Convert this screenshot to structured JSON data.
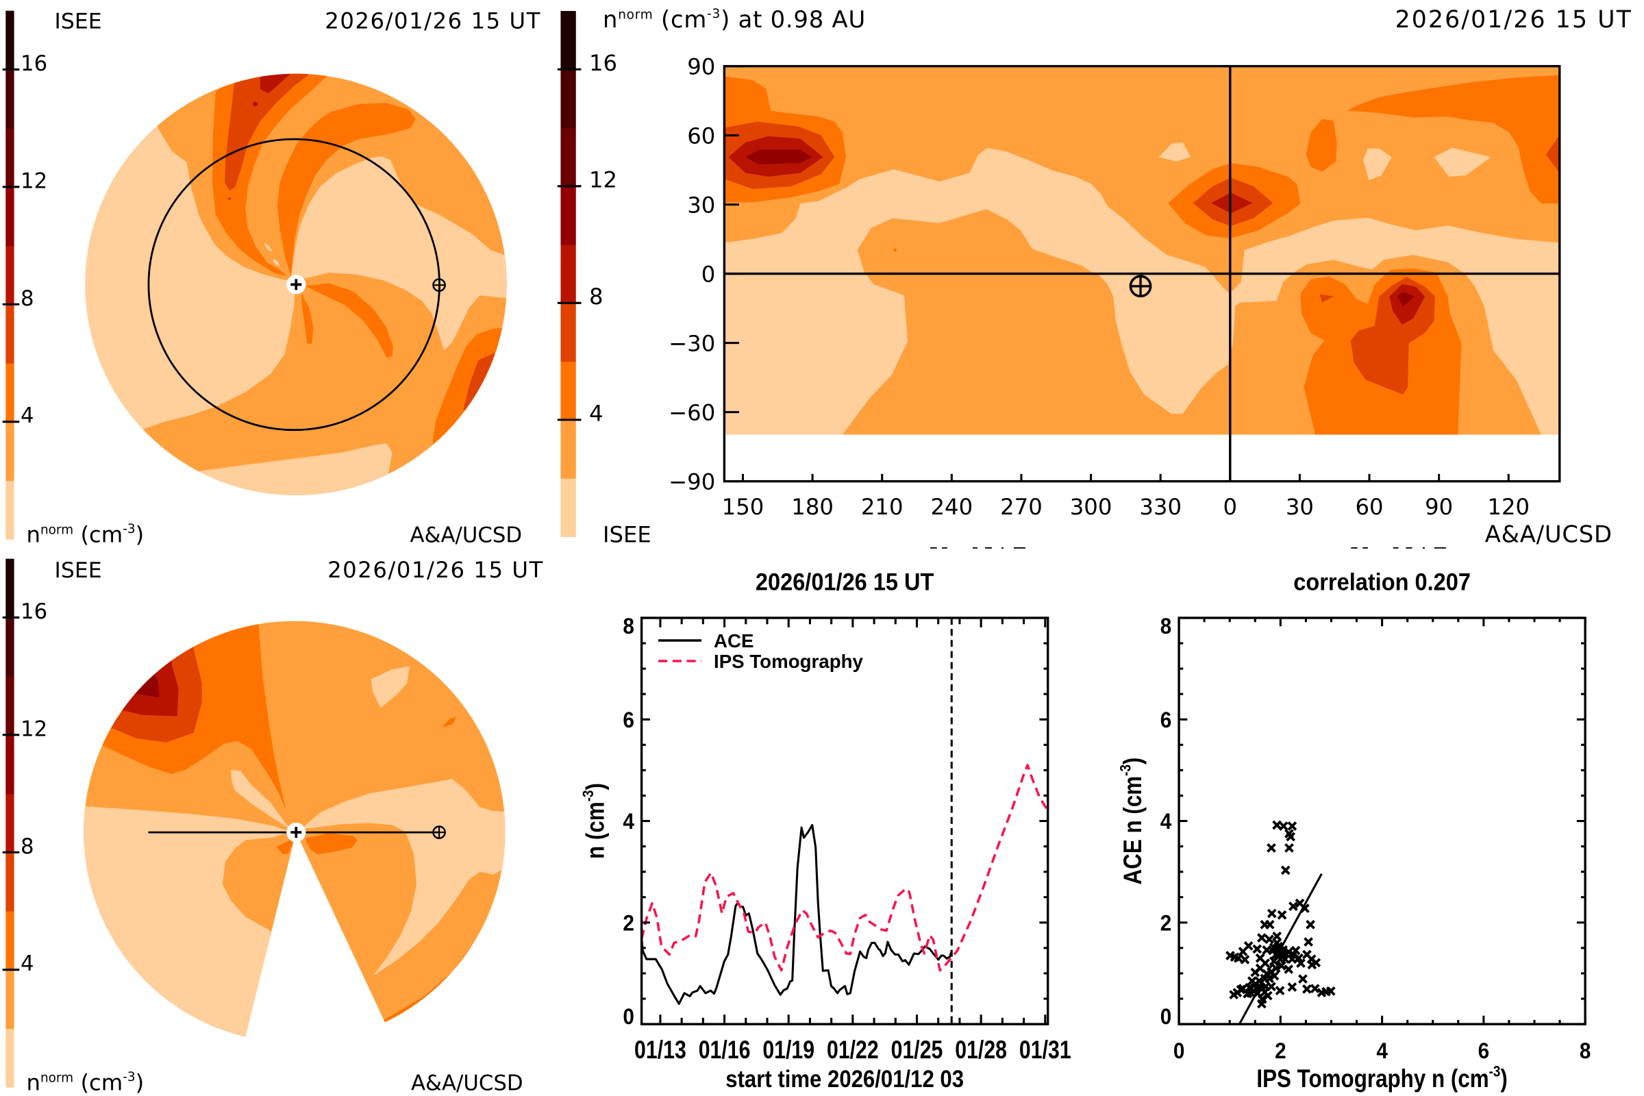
{
  "quantity": {
    "symbol": "n",
    "symbol_sup": "norm",
    "unit_open": " (cm",
    "unit_sup": "-3",
    "unit_close": ")"
  },
  "colorscale": {
    "levels": [
      0,
      2,
      4,
      6,
      8,
      10,
      12,
      14,
      16,
      18
    ],
    "colors": [
      "#ffcf9c",
      "#ffa03c",
      "#ff7300",
      "#e04300",
      "#b81300",
      "#920000",
      "#6a0000",
      "#4a0000",
      "#1e0000"
    ],
    "tick_values": [
      16,
      12,
      8,
      4
    ],
    "tick_labels": [
      "16",
      "12",
      "8",
      "4"
    ]
  },
  "icons": {
    "sun": "sun-icon",
    "earth": "earth-icon"
  },
  "panels": {
    "ecliptic_view": {
      "source_label": "ISEE",
      "timestamp": "2026/01/26 15 UT",
      "credit": "A&A/UCSD"
    },
    "synoptic_map": {
      "title_suffix": " at 0.98 AU",
      "timestamp": "2026/01/26 15 UT",
      "source_label": "ISEE",
      "credit": "A&A/UCSD",
      "lon_range": [
        142,
        502
      ],
      "lat_range": [
        -90,
        90
      ],
      "lat_ticks": [
        {
          "value": 90,
          "label": "90"
        },
        {
          "value": 60,
          "label": "60"
        },
        {
          "value": 30,
          "label": "30"
        },
        {
          "value": 0,
          "label": "0"
        },
        {
          "value": -30,
          "label": "−30"
        },
        {
          "value": -60,
          "label": "−60"
        },
        {
          "value": -90,
          "label": "−90"
        }
      ],
      "lon_ticks": [
        {
          "value": 150,
          "label": "150"
        },
        {
          "value": 180,
          "label": "180"
        },
        {
          "value": 210,
          "label": "210"
        },
        {
          "value": 240,
          "label": "240"
        },
        {
          "value": 270,
          "label": "270"
        },
        {
          "value": 300,
          "label": "300"
        },
        {
          "value": 330,
          "label": "330"
        },
        {
          "value": 0,
          "label": "0"
        },
        {
          "value": 30,
          "label": "30"
        },
        {
          "value": 60,
          "label": "60"
        },
        {
          "value": 90,
          "label": "90"
        },
        {
          "value": 120,
          "label": "120"
        }
      ],
      "earth": {
        "lon": 321.4,
        "lat": -5.4
      }
    },
    "meridional_view": {
      "source_label": "ISEE",
      "timestamp": "2026/01/26 15 UT",
      "credit": "A&A/UCSD"
    }
  },
  "chart_data": [
    {
      "type": "line",
      "title": "2026/01/26 15 UT",
      "xlabel": "start time 2026/01/12 03",
      "ylabel": {
        "main": "n (cm",
        "sup": "-3",
        "end": ")"
      },
      "x_units": "days since 2026/01/12 03 UT",
      "xlim": [
        0,
        19
      ],
      "ylim": [
        0,
        8
      ],
      "x_ticks": [
        {
          "value": 0.875,
          "label": "01/13"
        },
        {
          "value": 3.875,
          "label": "01/16"
        },
        {
          "value": 6.875,
          "label": "01/19"
        },
        {
          "value": 9.875,
          "label": "01/22"
        },
        {
          "value": 12.875,
          "label": "01/25"
        },
        {
          "value": 15.875,
          "label": "01/28"
        },
        {
          "value": 18.875,
          "label": "01/31"
        }
      ],
      "x_minor_step": 1,
      "y_ticks": [
        0,
        2,
        4,
        6,
        8
      ],
      "y_minor_step": 0.5,
      "grid": false,
      "legend": "top-left",
      "marker": {
        "value": 14.5,
        "label": "2026/01/26 15 UT",
        "style": "dashed"
      },
      "series": [
        {
          "name": "ACE",
          "line_style": "solid",
          "color": "#000000",
          "x": [
            0.0,
            0.05,
            0.23,
            0.66,
            0.95,
            1.2,
            1.52,
            1.75,
            2.0,
            2.26,
            2.37,
            2.61,
            2.74,
            2.99,
            3.23,
            3.39,
            3.49,
            3.87,
            4.04,
            4.19,
            4.4,
            4.51,
            4.62,
            4.74,
            4.88,
            5.02,
            5.2,
            5.42,
            5.63,
            5.9,
            6.22,
            6.49,
            6.65,
            6.81,
            6.95,
            7.05,
            7.14,
            7.29,
            7.48,
            7.59,
            7.8,
            7.98,
            8.14,
            8.25,
            8.35,
            8.48,
            8.73,
            8.87,
            9.0,
            9.16,
            9.26,
            9.51,
            9.62,
            9.76,
            9.96,
            10.22,
            10.38,
            10.51,
            10.6,
            10.76,
            10.9,
            11.08,
            11.15,
            11.29,
            11.4,
            11.51,
            11.67,
            11.86,
            12.01,
            12.2,
            12.33,
            12.5,
            12.74,
            12.95,
            13.06,
            13.25,
            13.48,
            13.64,
            13.88,
            14.02,
            14.12,
            14.28,
            14.42,
            14.5
          ],
          "y": [
            1.72,
            1.45,
            1.28,
            1.28,
            1.08,
            0.8,
            0.56,
            0.4,
            0.61,
            0.55,
            0.62,
            0.66,
            0.75,
            0.61,
            0.66,
            0.6,
            0.7,
            1.24,
            1.37,
            1.73,
            2.33,
            2.39,
            2.31,
            2.31,
            2.14,
            2.18,
            1.86,
            1.39,
            1.26,
            1.06,
            0.77,
            0.58,
            0.67,
            0.7,
            0.84,
            0.86,
            1.77,
            3.08,
            3.87,
            3.67,
            3.79,
            3.92,
            3.48,
            2.41,
            1.77,
            1.05,
            1.06,
            0.75,
            0.7,
            0.61,
            0.67,
            0.75,
            0.59,
            0.61,
            1.04,
            1.43,
            1.33,
            1.3,
            1.46,
            1.6,
            1.6,
            1.48,
            1.46,
            1.34,
            1.4,
            1.62,
            1.46,
            1.37,
            1.37,
            1.24,
            1.26,
            1.17,
            1.39,
            1.38,
            1.43,
            1.53,
            1.48,
            1.39,
            1.27,
            1.35,
            1.35,
            1.29,
            1.33,
            1.44
          ]
        },
        {
          "name": "IPS Tomography",
          "line_style": "dashed",
          "color": "#f8144e",
          "x": [
            0.0,
            0.24,
            0.5,
            0.72,
            0.93,
            1.3,
            1.52,
            1.84,
            2.26,
            2.53,
            2.69,
            2.96,
            3.25,
            3.49,
            3.76,
            3.97,
            4.29,
            4.56,
            4.78,
            4.99,
            5.31,
            5.47,
            5.79,
            6.0,
            6.22,
            6.54,
            6.81,
            7.18,
            7.52,
            7.71,
            7.93,
            8.25,
            8.46,
            8.84,
            9.05,
            9.32,
            9.58,
            9.76,
            9.96,
            10.22,
            10.47,
            10.65,
            10.97,
            11.24,
            11.45,
            11.72,
            11.99,
            12.36,
            12.52,
            12.79,
            13.06,
            13.22,
            13.48,
            13.64,
            13.8,
            13.96,
            14.18,
            14.44,
            14.77,
            15.41,
            16.05,
            16.69,
            17.33,
            17.87,
            18.05,
            18.3,
            18.61,
            19.0
          ],
          "y": [
            1.68,
            2.09,
            2.38,
            2.09,
            1.53,
            1.37,
            1.6,
            1.64,
            1.75,
            1.73,
            2.04,
            2.8,
            2.98,
            2.71,
            2.18,
            2.51,
            2.58,
            2.35,
            2.2,
            1.82,
            1.8,
            1.91,
            2.0,
            1.73,
            1.33,
            1.06,
            1.51,
            1.97,
            2.24,
            2.18,
            1.97,
            1.71,
            1.77,
            1.84,
            1.8,
            1.6,
            1.39,
            1.38,
            1.77,
            2.09,
            2.15,
            2.02,
            1.93,
            1.86,
            1.84,
            2.22,
            2.53,
            2.67,
            2.6,
            2.04,
            1.57,
            1.39,
            1.75,
            1.66,
            1.33,
            1.06,
            1.15,
            1.28,
            1.45,
            2.05,
            2.77,
            3.53,
            4.24,
            4.91,
            5.1,
            4.8,
            4.47,
            4.2
          ]
        }
      ]
    },
    {
      "type": "scatter",
      "title": "correlation 0.207",
      "correlation": 0.207,
      "xlabel": {
        "main": "IPS Tomography n (cm",
        "sup": "-3",
        "end": ")"
      },
      "ylabel": {
        "main": "ACE n (cm",
        "sup": "-3",
        "end": ")"
      },
      "xlim": [
        0,
        8
      ],
      "ylim": [
        0,
        8
      ],
      "x_ticks": [
        0,
        2,
        4,
        6,
        8
      ],
      "y_ticks": [
        0,
        2,
        4,
        6,
        8
      ],
      "minor_step": 0.5,
      "grid": false,
      "marker": "x",
      "fit_line": {
        "x": [
          1.19,
          2.81
        ],
        "y": [
          0,
          2.96
        ]
      },
      "points": [
        [
          1.93,
          3.92
        ],
        [
          2.06,
          3.9
        ],
        [
          2.23,
          3.9
        ],
        [
          2.17,
          3.75
        ],
        [
          2.2,
          3.69
        ],
        [
          1.82,
          3.47
        ],
        [
          2.17,
          3.47
        ],
        [
          2.1,
          3.03
        ],
        [
          1.83,
          2.18
        ],
        [
          2.03,
          2.15
        ],
        [
          2.25,
          2.32
        ],
        [
          2.38,
          2.38
        ],
        [
          2.48,
          2.28
        ],
        [
          2.59,
          1.96
        ],
        [
          2.55,
          1.62
        ],
        [
          1.69,
          1.96
        ],
        [
          1.79,
          1.96
        ],
        [
          1.63,
          1.7
        ],
        [
          1.78,
          1.67
        ],
        [
          1.93,
          1.73
        ],
        [
          1.37,
          1.54
        ],
        [
          1.54,
          1.48
        ],
        [
          1.26,
          1.43
        ],
        [
          1.01,
          1.35
        ],
        [
          1.1,
          1.32
        ],
        [
          1.17,
          1.3
        ],
        [
          1.3,
          1.27
        ],
        [
          1.6,
          1.3
        ],
        [
          1.73,
          1.46
        ],
        [
          1.87,
          1.51
        ],
        [
          1.96,
          1.53
        ],
        [
          2.05,
          1.46
        ],
        [
          2.16,
          1.42
        ],
        [
          2.25,
          1.37
        ],
        [
          1.91,
          1.37
        ],
        [
          2.0,
          1.28
        ],
        [
          2.09,
          1.28
        ],
        [
          2.23,
          1.28
        ],
        [
          2.36,
          1.3
        ],
        [
          2.52,
          1.37
        ],
        [
          2.61,
          1.28
        ],
        [
          2.7,
          1.21
        ],
        [
          2.62,
          1.17
        ],
        [
          2.16,
          1.08
        ],
        [
          2.02,
          1.15
        ],
        [
          1.91,
          1.1
        ],
        [
          1.82,
          1.03
        ],
        [
          1.73,
          0.99
        ],
        [
          1.5,
          1.02
        ],
        [
          1.69,
          0.9
        ],
        [
          1.78,
          0.9
        ],
        [
          1.44,
          0.85
        ],
        [
          1.51,
          0.79
        ],
        [
          1.39,
          0.72
        ],
        [
          1.53,
          0.7
        ],
        [
          1.62,
          0.72
        ],
        [
          1.71,
          0.74
        ],
        [
          1.82,
          0.74
        ],
        [
          1.26,
          0.7
        ],
        [
          1.15,
          0.62
        ],
        [
          1.08,
          0.58
        ],
        [
          1.42,
          0.61
        ],
        [
          1.55,
          0.61
        ],
        [
          1.69,
          0.63
        ],
        [
          1.75,
          0.56
        ],
        [
          1.64,
          0.49
        ],
        [
          1.63,
          0.4
        ],
        [
          1.99,
          0.66
        ],
        [
          2.23,
          0.73
        ],
        [
          2.44,
          0.89
        ],
        [
          2.52,
          0.69
        ],
        [
          2.68,
          0.7
        ],
        [
          2.81,
          0.62
        ],
        [
          2.9,
          0.64
        ],
        [
          2.99,
          0.65
        ],
        [
          1.93,
          1.6
        ],
        [
          2.0,
          1.44
        ],
        [
          1.87,
          1.24
        ],
        [
          1.95,
          1.4
        ],
        [
          1.85,
          1.45
        ],
        [
          2.05,
          1.35
        ],
        [
          1.7,
          1.2
        ],
        [
          1.6,
          1.1
        ],
        [
          1.88,
          0.95
        ],
        [
          1.58,
          0.85
        ],
        [
          1.47,
          0.65
        ],
        [
          1.35,
          0.6
        ],
        [
          2.3,
          1.45
        ],
        [
          2.4,
          1.2
        ],
        [
          1.22,
          0.68
        ]
      ]
    }
  ]
}
